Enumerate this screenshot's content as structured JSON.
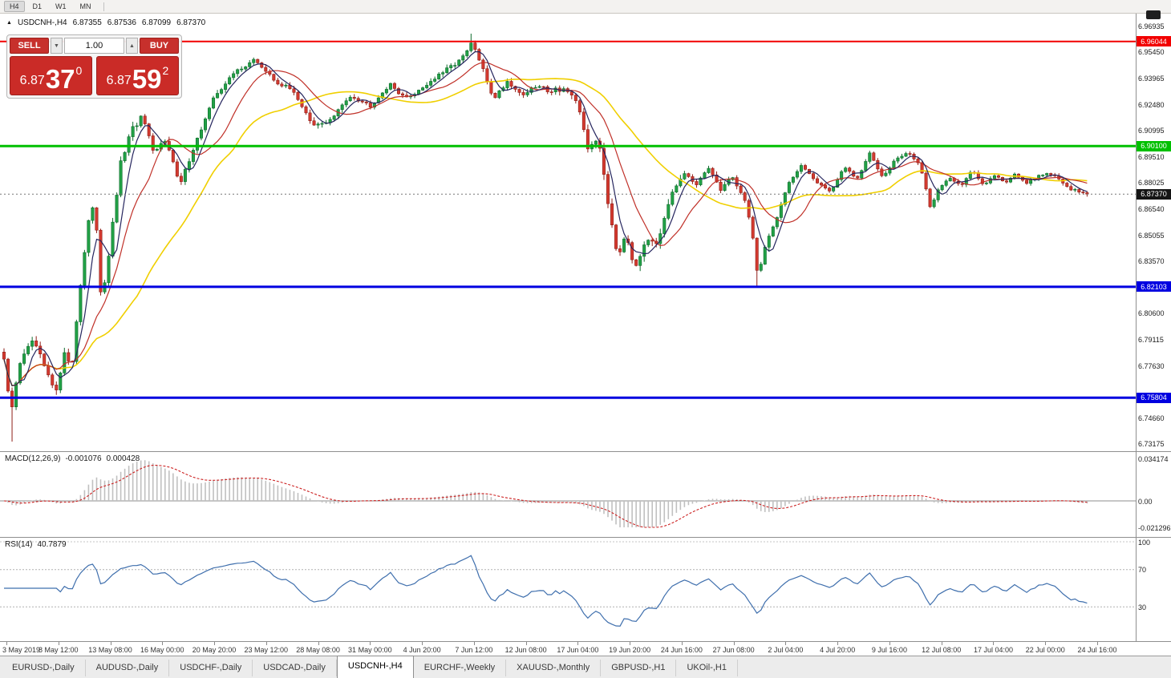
{
  "toolbar": {
    "timeframes": [
      "H4",
      "D1",
      "W1",
      "MN"
    ],
    "active_timeframe": "H4"
  },
  "icons": {
    "header_marker": "▲",
    "volume_down": "▼",
    "volume_up": "▲"
  },
  "chart_header": {
    "symbol": "USDCNH-,H4",
    "open": "6.87355",
    "high": "6.87536",
    "low": "6.87099",
    "close": "6.87370"
  },
  "trade_panel": {
    "sell_label": "SELL",
    "buy_label": "BUY",
    "volume": "1.00",
    "sell_price": {
      "prefix": "6.87",
      "big": "37",
      "sup": "0"
    },
    "buy_price": {
      "prefix": "6.87",
      "big": "59",
      "sup": "2"
    }
  },
  "price_axis": {
    "ticks": [
      "6.96935",
      "6.95450",
      "6.93965",
      "6.92480",
      "6.90995",
      "6.89510",
      "6.88025",
      "6.86540",
      "6.85055",
      "6.83570",
      "6.80600",
      "6.79115",
      "6.77630",
      "6.74660",
      "6.73175"
    ],
    "line_labels": [
      {
        "text": "6.96044",
        "color": "#f20000",
        "name": "resistance-line-label"
      },
      {
        "text": "6.90100",
        "color": "#00c000",
        "name": "green-support-line-label"
      },
      {
        "text": "6.87370",
        "color": "#151515",
        "name": "current-price-label"
      },
      {
        "text": "6.82103",
        "color": "#0000e0",
        "name": "blue-support-line-label-1"
      },
      {
        "text": "6.75804",
        "color": "#0000e0",
        "name": "blue-support-line-label-2"
      }
    ]
  },
  "time_axis": {
    "labels": [
      "3 May 2019",
      "8 May 12:00",
      "13 May 08:00",
      "16 May 00:00",
      "20 May 20:00",
      "23 May 12:00",
      "28 May 08:00",
      "31 May 00:00",
      "4 Jun 20:00",
      "7 Jun 12:00",
      "12 Jun 08:00",
      "17 Jun 04:00",
      "19 Jun 20:00",
      "24 Jun 16:00",
      "27 Jun 08:00",
      "2 Jul 04:00",
      "4 Jul 20:00",
      "9 Jul 16:00",
      "12 Jul 08:00",
      "17 Jul 04:00",
      "22 Jul 00:00",
      "24 Jul 16:00"
    ]
  },
  "macd_panel": {
    "label": "MACD(12,26,9)",
    "value_main": "-0.001076",
    "value_signal": "0.000428",
    "axis_labels": [
      "0.034174",
      "0.00",
      "-0.021296"
    ]
  },
  "rsi_panel": {
    "label": "RSI(14)",
    "value": "40.7879",
    "axis_labels": [
      "100",
      "70",
      "30"
    ]
  },
  "tab_bar": {
    "tabs": [
      "EURUSD-,Daily",
      "AUDUSD-,Daily",
      "USDCHF-,Daily",
      "USDCAD-,Daily",
      "USDCNH-,H4",
      "EURCHF-,Weekly",
      "XAUUSD-,Monthly",
      "GBPUSD-,H1",
      "UKOil-,H1"
    ],
    "active": "USDCNH-,H4"
  },
  "chart_data": {
    "type": "candlestick",
    "symbol": "USDCNH-",
    "timeframe": "H4",
    "visible_range": {
      "start": "3 May 2019",
      "end": "24 Jul 16:00"
    },
    "y_axis_range": [
      6.729,
      6.974
    ],
    "candle_count": 270,
    "current_price": 6.8737,
    "ohlc_current": {
      "open": 6.87355,
      "high": 6.87536,
      "low": 6.87099,
      "close": 6.8737
    },
    "horizontal_lines": [
      {
        "price": 6.96044,
        "color": "#f20000",
        "width": 2
      },
      {
        "price": 6.901,
        "color": "#00c000",
        "width": 3
      },
      {
        "price": 6.82103,
        "color": "#0000e0",
        "width": 3
      },
      {
        "price": 6.75804,
        "color": "#0000e0",
        "width": 3
      }
    ],
    "price_path": [
      [
        0.0,
        6.78
      ],
      [
        0.006,
        6.748
      ],
      [
        0.016,
        6.782
      ],
      [
        0.028,
        6.79
      ],
      [
        0.038,
        6.774
      ],
      [
        0.048,
        6.76
      ],
      [
        0.056,
        6.786
      ],
      [
        0.062,
        6.772
      ],
      [
        0.07,
        6.82
      ],
      [
        0.078,
        6.858
      ],
      [
        0.084,
        6.868
      ],
      [
        0.09,
        6.812
      ],
      [
        0.098,
        6.845
      ],
      [
        0.108,
        6.892
      ],
      [
        0.118,
        6.91
      ],
      [
        0.128,
        6.918
      ],
      [
        0.138,
        6.896
      ],
      [
        0.15,
        6.906
      ],
      [
        0.162,
        6.878
      ],
      [
        0.175,
        6.9
      ],
      [
        0.195,
        6.93
      ],
      [
        0.215,
        6.944
      ],
      [
        0.232,
        6.95
      ],
      [
        0.25,
        6.938
      ],
      [
        0.268,
        6.932
      ],
      [
        0.285,
        6.912
      ],
      [
        0.302,
        6.916
      ],
      [
        0.32,
        6.93
      ],
      [
        0.338,
        6.924
      ],
      [
        0.356,
        6.936
      ],
      [
        0.372,
        6.928
      ],
      [
        0.39,
        6.936
      ],
      [
        0.408,
        6.944
      ],
      [
        0.425,
        6.952
      ],
      [
        0.432,
        6.96
      ],
      [
        0.44,
        6.948
      ],
      [
        0.452,
        6.928
      ],
      [
        0.465,
        6.938
      ],
      [
        0.478,
        6.93
      ],
      [
        0.492,
        6.935
      ],
      [
        0.505,
        6.933
      ],
      [
        0.518,
        6.934
      ],
      [
        0.531,
        6.922
      ],
      [
        0.54,
        6.898
      ],
      [
        0.549,
        6.906
      ],
      [
        0.558,
        6.868
      ],
      [
        0.567,
        6.838
      ],
      [
        0.574,
        6.853
      ],
      [
        0.583,
        6.83
      ],
      [
        0.593,
        6.85
      ],
      [
        0.604,
        6.846
      ],
      [
        0.617,
        6.874
      ],
      [
        0.629,
        6.886
      ],
      [
        0.64,
        6.878
      ],
      [
        0.65,
        6.89
      ],
      [
        0.661,
        6.876
      ],
      [
        0.672,
        6.884
      ],
      [
        0.683,
        6.872
      ],
      [
        0.69,
        6.856
      ],
      [
        0.696,
        6.826
      ],
      [
        0.704,
        6.846
      ],
      [
        0.713,
        6.86
      ],
      [
        0.724,
        6.88
      ],
      [
        0.737,
        6.89
      ],
      [
        0.75,
        6.881
      ],
      [
        0.763,
        6.875
      ],
      [
        0.776,
        6.889
      ],
      [
        0.788,
        6.882
      ],
      [
        0.799,
        6.897
      ],
      [
        0.811,
        6.884
      ],
      [
        0.824,
        6.894
      ],
      [
        0.836,
        6.897
      ],
      [
        0.846,
        6.89
      ],
      [
        0.855,
        6.866
      ],
      [
        0.864,
        6.878
      ],
      [
        0.874,
        6.883
      ],
      [
        0.884,
        6.879
      ],
      [
        0.894,
        6.887
      ],
      [
        0.904,
        6.879
      ],
      [
        0.914,
        6.885
      ],
      [
        0.924,
        6.88
      ],
      [
        0.934,
        6.886
      ],
      [
        0.944,
        6.879
      ],
      [
        0.954,
        6.884
      ],
      [
        0.964,
        6.886
      ],
      [
        0.974,
        6.882
      ],
      [
        0.984,
        6.877
      ],
      [
        1.0,
        6.8737
      ]
    ],
    "extremes": {
      "high": [
        0.432,
        6.9649
      ],
      "low_left": [
        0.006,
        6.7331
      ],
      "low_june": [
        0.696,
        6.8208
      ]
    },
    "moving_averages": [
      {
        "period": 5,
        "color": "#25255e"
      },
      {
        "period": 13,
        "color": "#c03028"
      },
      {
        "period": 34,
        "color": "#f0cf00"
      }
    ],
    "indicators": {
      "macd": {
        "fast": 12,
        "slow": 26,
        "signal": 9,
        "current_main": -0.001076,
        "current_signal": 0.000428,
        "scale": [
          -0.021296,
          0.034174
        ],
        "histogram_color": "#c0c0c0",
        "signal_color": "#cc2020"
      },
      "rsi": {
        "period": 14,
        "current": 40.7879,
        "levels": [
          70,
          30
        ],
        "line_color": "#3f6fad",
        "scale": [
          0,
          100
        ]
      }
    }
  }
}
